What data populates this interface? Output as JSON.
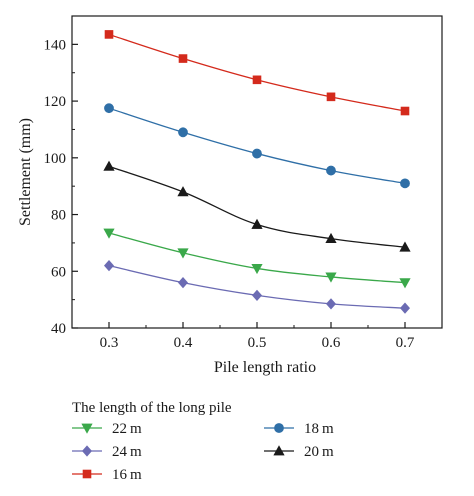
{
  "chart_data": {
    "type": "line",
    "xlabel": "Pile length ratio",
    "ylabel": "Settlement (mm)",
    "x": [
      0.3,
      0.4,
      0.5,
      0.6,
      0.7
    ],
    "x_ticks": [
      "0.3",
      "0.4",
      "0.5",
      "0.6",
      "0.7"
    ],
    "xlim": [
      0.25,
      0.75
    ],
    "y_ticks": [
      "40",
      "60",
      "80",
      "100",
      "120",
      "140"
    ],
    "ylim": [
      40,
      150
    ],
    "grid": false,
    "legend_title": "The length of the long pile",
    "legend_position": "bottom",
    "series": [
      {
        "name": "16 m",
        "marker": "square",
        "color": "#d42a1c",
        "values": [
          143.5,
          135,
          127.5,
          121.5,
          116.5
        ]
      },
      {
        "name": "18 m",
        "marker": "circle",
        "color": "#2f6fa7",
        "values": [
          117.5,
          109,
          101.5,
          95.5,
          91
        ]
      },
      {
        "name": "20 m",
        "marker": "triangle-up",
        "color": "#1a1a1a",
        "values": [
          97,
          88,
          76.5,
          71.5,
          68.5
        ]
      },
      {
        "name": "22 m",
        "marker": "triangle-down",
        "color": "#3aa84a",
        "values": [
          73.5,
          66.5,
          61,
          58,
          56
        ]
      },
      {
        "name": "24 m",
        "marker": "diamond",
        "color": "#6b6bb3",
        "values": [
          62,
          56,
          51.5,
          48.5,
          47
        ]
      }
    ],
    "legend_order": [
      3,
      1,
      4,
      2,
      0
    ]
  }
}
